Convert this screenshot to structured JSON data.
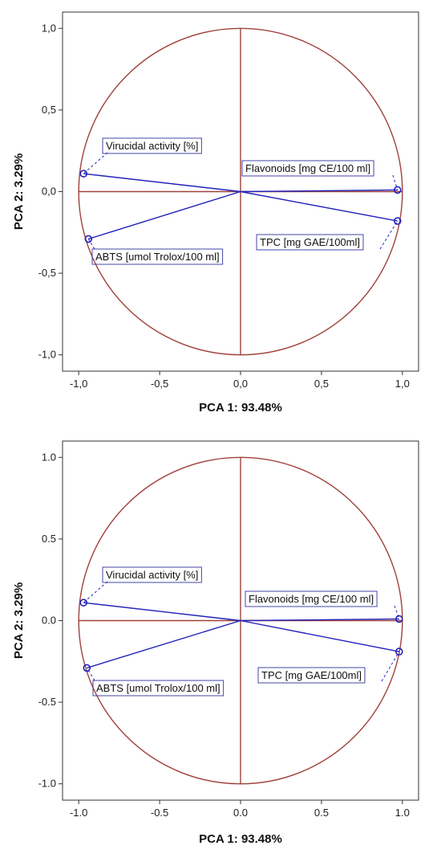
{
  "chart_data": [
    {
      "type": "scatter",
      "xlabel": "PCA 1: 93.48%",
      "ylabel": "PCA 2:  3.29%",
      "xlim": [
        -1.1,
        1.1
      ],
      "ylim": [
        -1.1,
        1.1
      ],
      "xticks": [
        "-1,0",
        "-0,5",
        "0,0",
        "0,5",
        "1,0"
      ],
      "yticks": [
        "1,0",
        "0,5",
        "0,0",
        "-0,5",
        "-1,0"
      ],
      "grid": false,
      "unit_circle": true,
      "points": [
        {
          "label": "Virucidal activity [%]",
          "x": -0.97,
          "y": 0.11
        },
        {
          "label": "ABTS [umol Trolox/100 ml]",
          "x": -0.94,
          "y": -0.29
        },
        {
          "label": "Flavonoids [mg CE/100 ml]",
          "x": 0.97,
          "y": 0.01
        },
        {
          "label": "TPC [mg GAE/100ml]",
          "x": 0.97,
          "y": -0.18
        }
      ]
    },
    {
      "type": "scatter",
      "xlabel": "PCA 1: 93.48%",
      "ylabel": "PCA 2:  3.29%",
      "xlim": [
        -1.1,
        1.1
      ],
      "ylim": [
        -1.1,
        1.1
      ],
      "xticks": [
        "-1.0",
        "-0.5",
        "0.0",
        "0.5",
        "1.0"
      ],
      "yticks": [
        "1.0",
        "0.5",
        "0.0",
        "-0.5",
        "-1.0"
      ],
      "grid": false,
      "unit_circle": true,
      "points": [
        {
          "label": "Virucidal activity [%]",
          "x": -0.97,
          "y": 0.11
        },
        {
          "label": "ABTS [umol Trolox/100 ml]",
          "x": -0.95,
          "y": -0.29
        },
        {
          "label": "Flavonoids [mg CE/100 ml]",
          "x": 0.98,
          "y": 0.01
        },
        {
          "label": "TPC [mg GAE/100ml]",
          "x": 0.98,
          "y": -0.19
        }
      ]
    }
  ],
  "colors": {
    "circle": "#a0413b",
    "axes_cross": "#a0413b",
    "vectors": "#2222bb",
    "label_border": "#4444aa"
  }
}
